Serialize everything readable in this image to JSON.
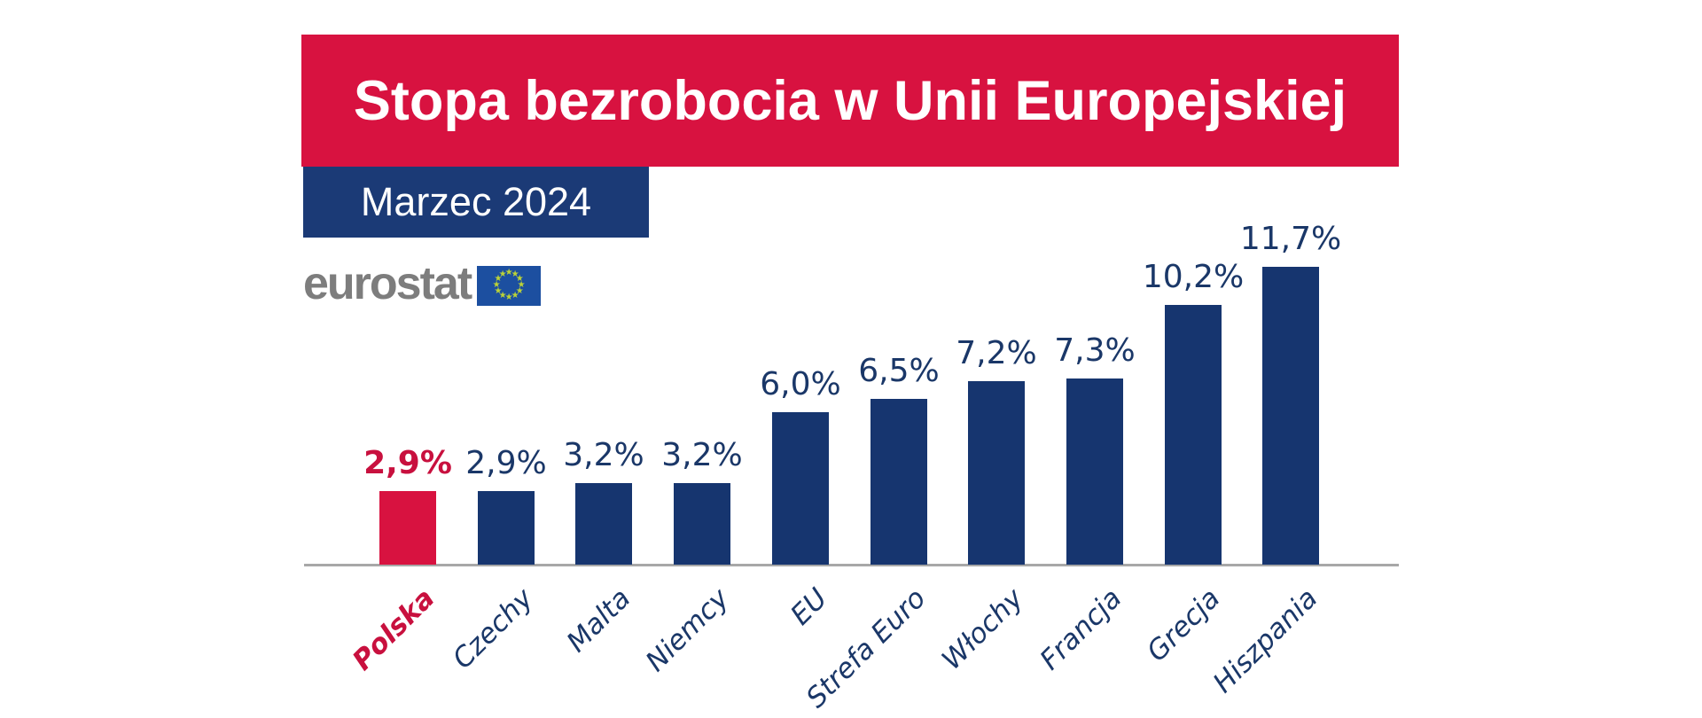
{
  "header": {
    "title": "Stopa bezrobocia w Unii Europejskiej",
    "period": "Marzec 2024"
  },
  "source": {
    "name": "eurostat",
    "logo": "eu-flag-icon"
  },
  "colors": {
    "banner_red": "#D81240",
    "banner_navy": "#1B3A76",
    "bar_navy": "#16356F",
    "bar_highlight_red": "#D81240",
    "label_navy": "#1A3768",
    "label_red": "#C8103E",
    "axis_gray": "#A8A8A8",
    "eurostat_gray": "#7D7D7D",
    "flag_blue": "#1C4FA0",
    "flag_star_yellow": "#BCD337"
  },
  "chart_data": {
    "type": "bar",
    "title": "Stopa bezrobocia w Unii Europejskiej",
    "subtitle": "Marzec 2024",
    "source": "eurostat",
    "unit": "%",
    "categories": [
      "Polska",
      "Czechy",
      "Malta",
      "Niemcy",
      "EU",
      "Strefa Euro",
      "Włochy",
      "Francja",
      "Grecja",
      "Hiszpania"
    ],
    "values": [
      2.9,
      2.9,
      3.2,
      3.2,
      6.0,
      6.5,
      7.2,
      7.3,
      10.2,
      11.7
    ],
    "value_labels": [
      "2,9%",
      "2,9%",
      "3,2%",
      "3,2%",
      "6,0%",
      "6,5%",
      "7,2%",
      "7,3%",
      "10,2%",
      "11,7%"
    ],
    "highlight_category": "Polska",
    "ylim": [
      0,
      12
    ],
    "grid": false,
    "legend": false,
    "xlabel": "",
    "ylabel": ""
  }
}
